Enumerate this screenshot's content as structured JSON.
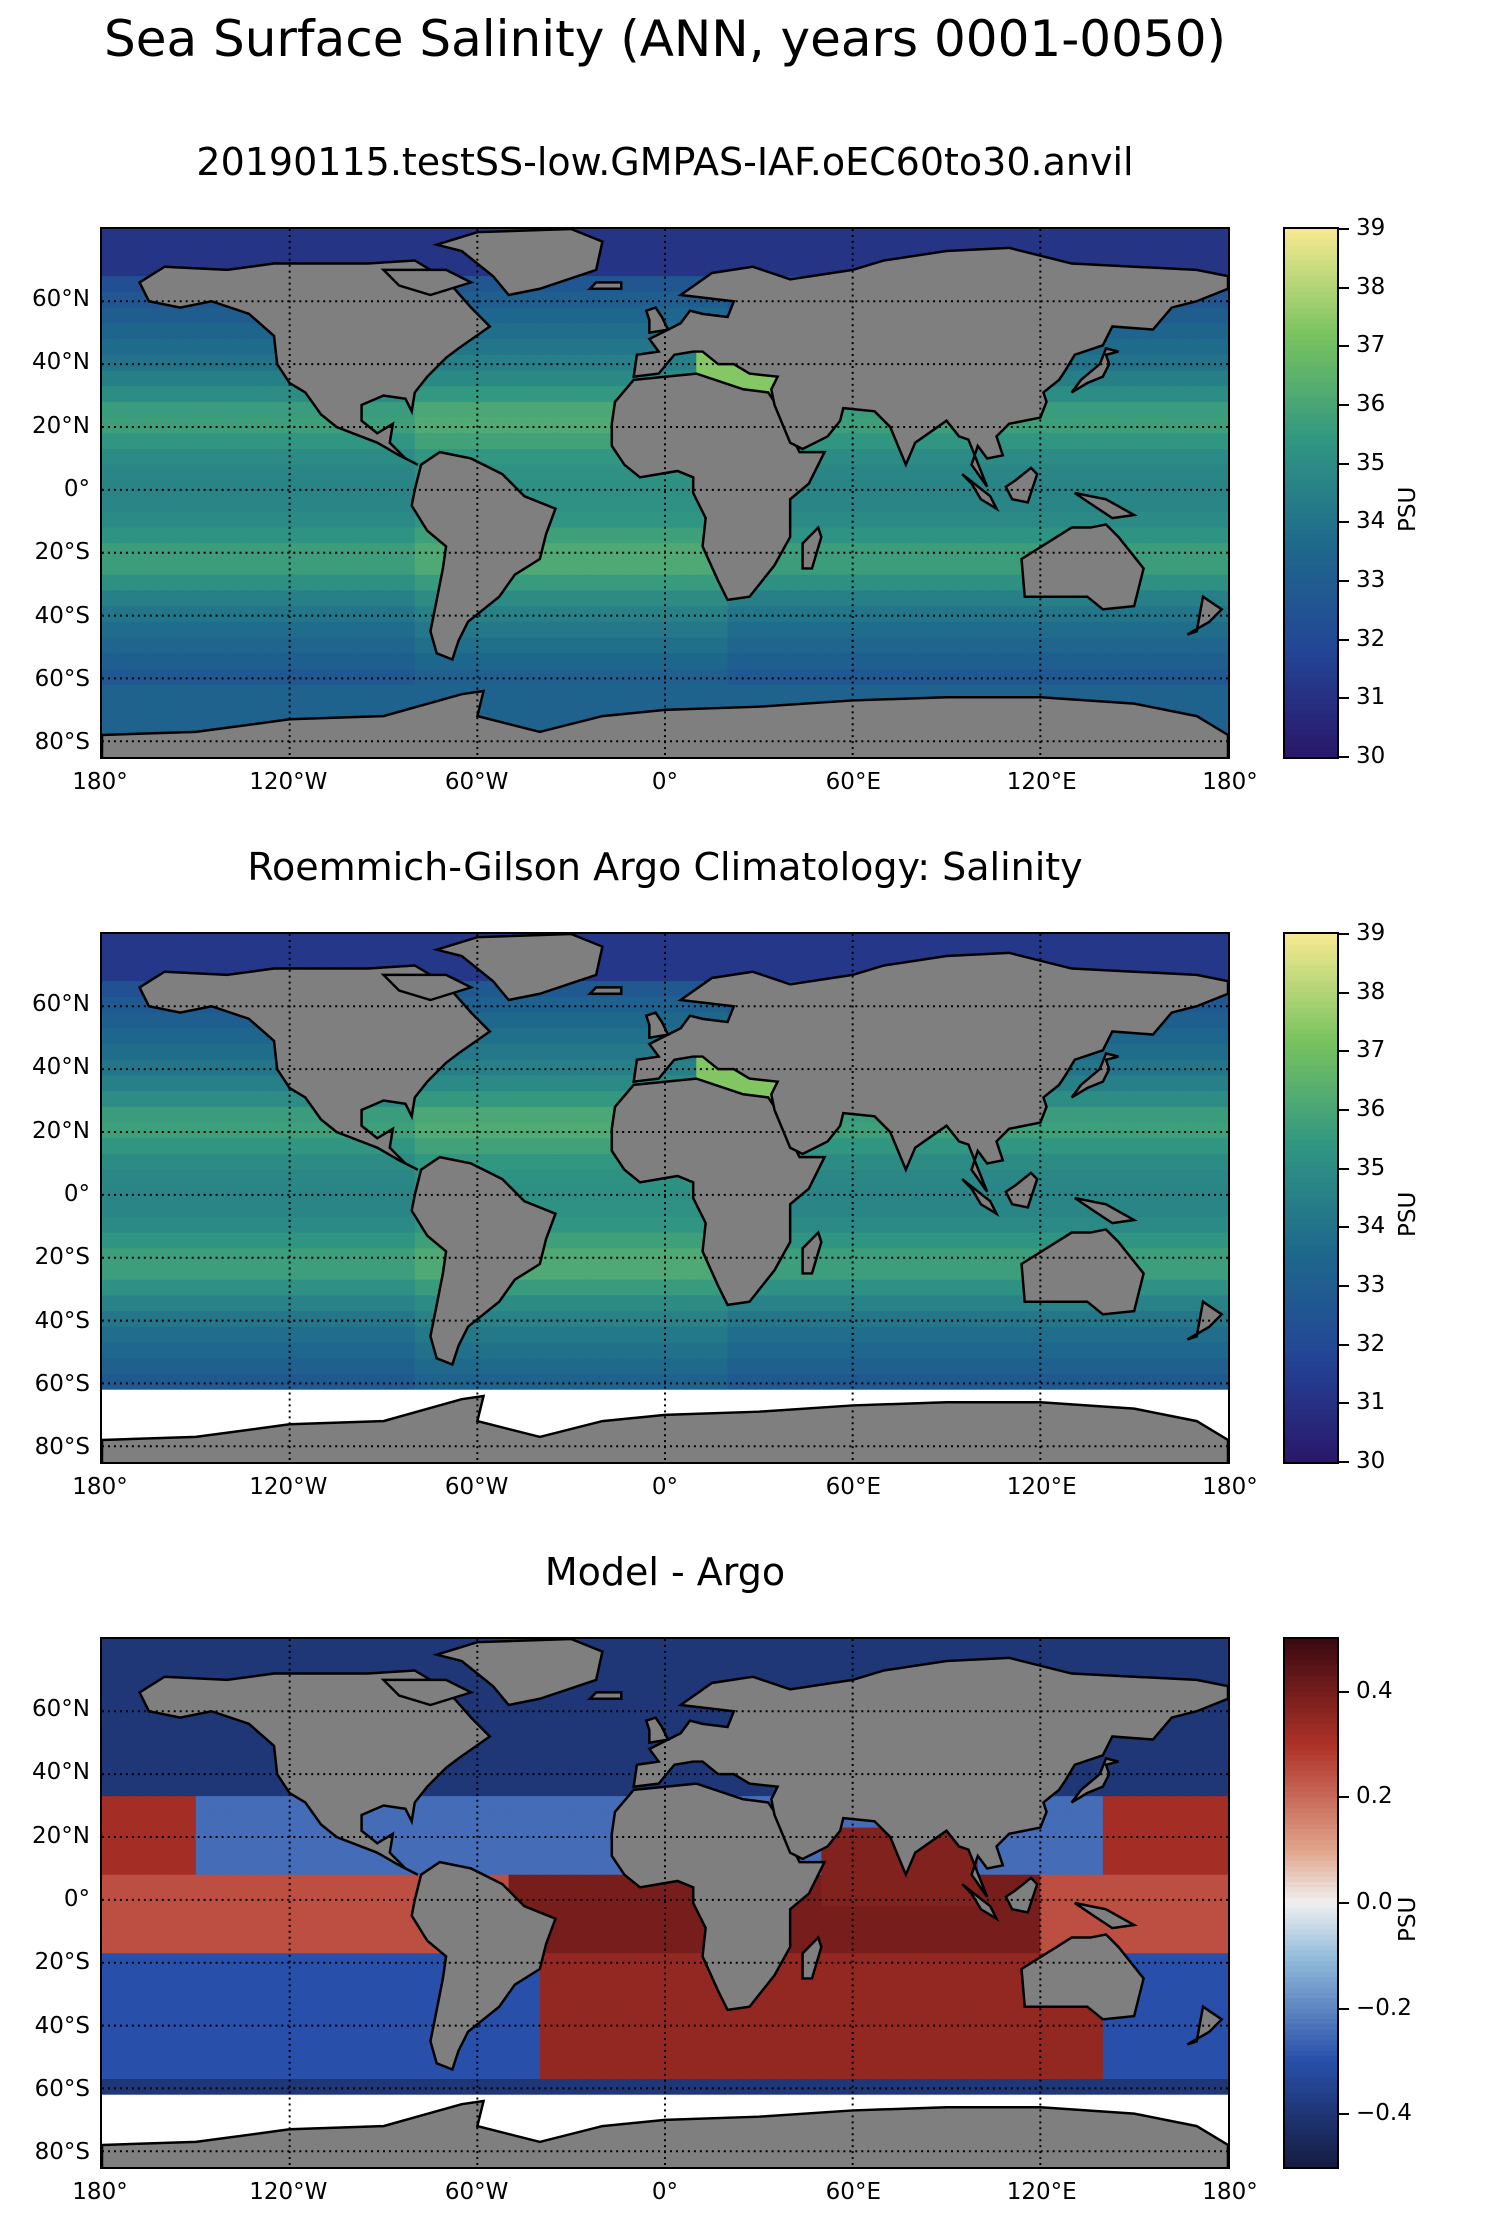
{
  "figure_title": "Sea Surface Salinity (ANN, years 0001-0050)",
  "panels": [
    {
      "title": "20190115.testSS-low.GMPAS-IAF.oEC60to30.anvil",
      "colorbar": {
        "label": "PSU",
        "ticks": [
          "39",
          "38",
          "37",
          "36",
          "35",
          "34",
          "33",
          "32",
          "31",
          "30"
        ],
        "colormap": "haline",
        "range": [
          30,
          39
        ]
      }
    },
    {
      "title": "Roemmich-Gilson Argo Climatology: Salinity",
      "colorbar": {
        "label": "PSU",
        "ticks": [
          "39",
          "38",
          "37",
          "36",
          "35",
          "34",
          "33",
          "32",
          "31",
          "30"
        ],
        "colormap": "haline",
        "range": [
          30,
          39
        ]
      }
    },
    {
      "title": "Model - Argo",
      "colorbar": {
        "label": "PSU",
        "ticks": [
          "0.4",
          "0.2",
          "0.0",
          "−0.2",
          "−0.4"
        ],
        "colormap": "balance",
        "range": [
          -0.5,
          0.5
        ]
      }
    }
  ],
  "lat_labels": [
    "60°N",
    "40°N",
    "20°N",
    "0°",
    "20°S",
    "40°S",
    "60°S",
    "80°S"
  ],
  "lon_labels": [
    "180°",
    "120°W",
    "60°W",
    "0°",
    "60°E",
    "120°E",
    "180°"
  ],
  "colors": {
    "land": "#7f7f7f",
    "haline_low": "#2a1a7a",
    "haline_mid": "#2f8f8a",
    "haline_high": "#f5e68f",
    "balance_low": "#161d44",
    "balance_mid": "#f0f0f0",
    "balance_high": "#3d0a12"
  }
}
